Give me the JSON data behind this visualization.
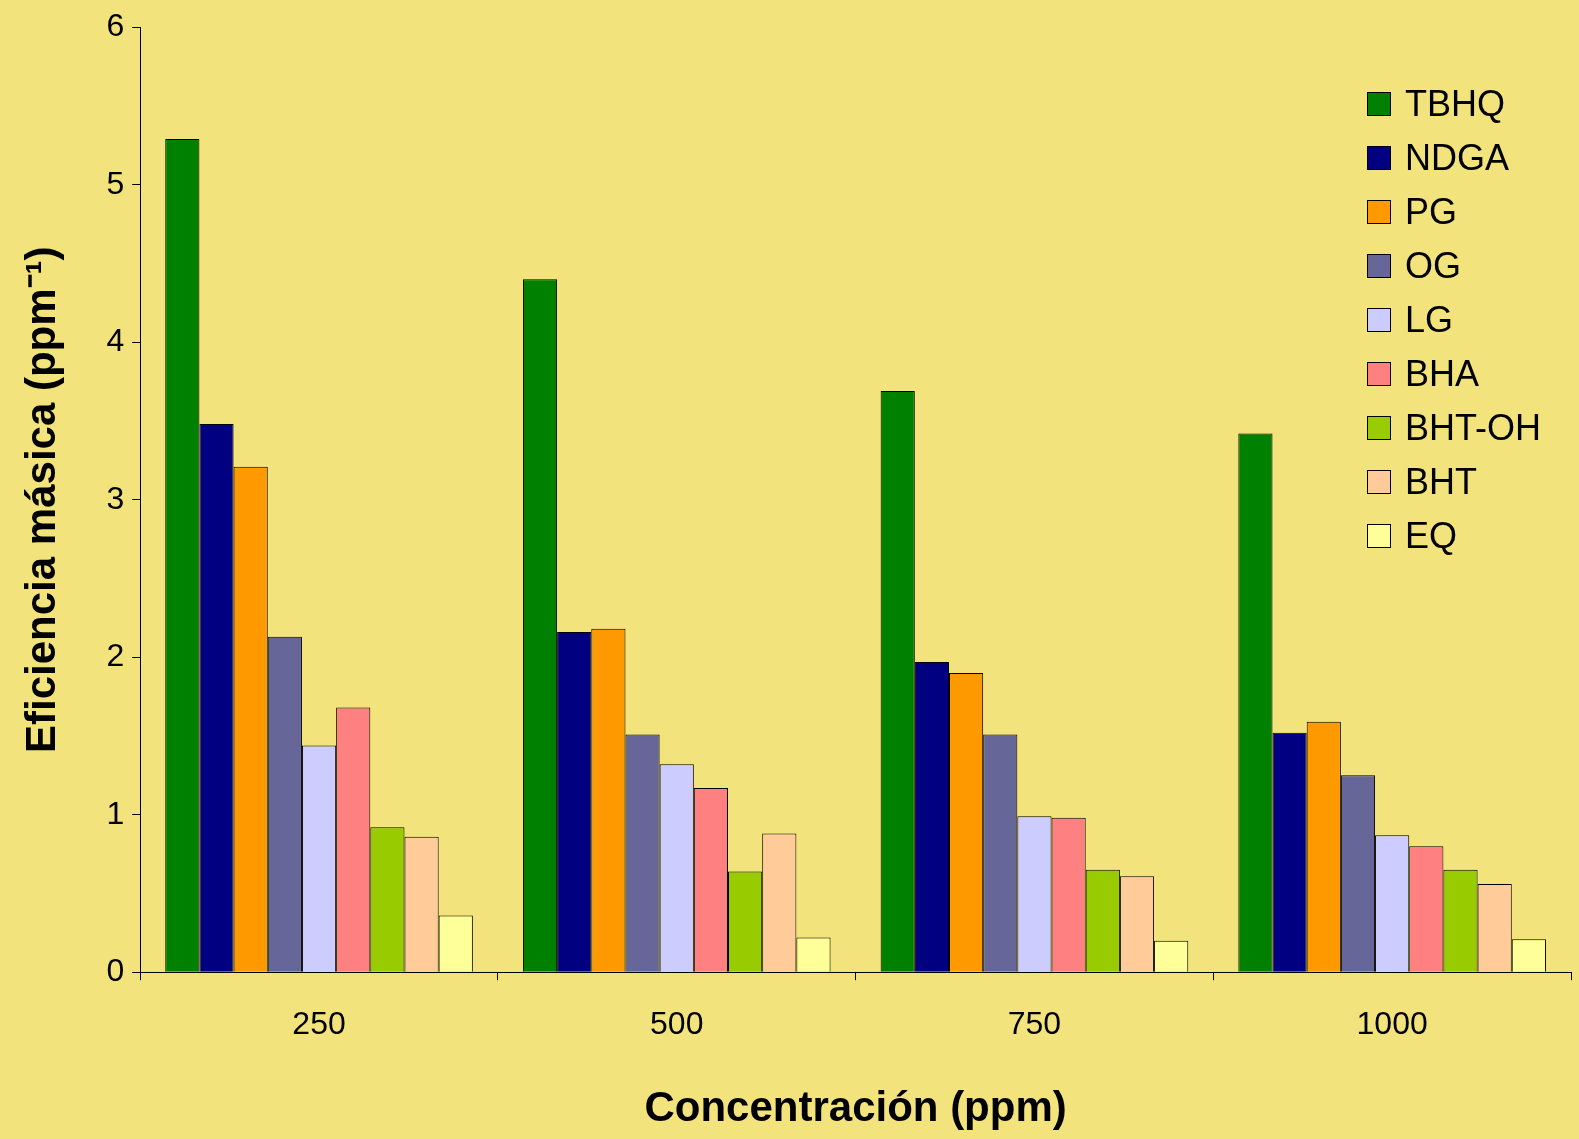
{
  "chart_data": {
    "type": "bar",
    "xlabel": "Concentración (ppm)",
    "ylabel": "Eficiencia másica (ppm⁻¹)",
    "categories": [
      "250",
      "500",
      "750",
      "1000"
    ],
    "series": [
      {
        "name": "TBHQ",
        "color": "#008000",
        "values": [
          5.29,
          4.4,
          3.69,
          3.42
        ]
      },
      {
        "name": "NDGA",
        "color": "#000080",
        "values": [
          3.48,
          2.16,
          1.97,
          1.52
        ]
      },
      {
        "name": "PG",
        "color": "#ff9900",
        "values": [
          3.21,
          2.18,
          1.9,
          1.59
        ]
      },
      {
        "name": "OG",
        "color": "#666699",
        "values": [
          2.13,
          1.51,
          1.51,
          1.25
        ]
      },
      {
        "name": "LG",
        "color": "#ccccff",
        "values": [
          1.44,
          1.32,
          0.99,
          0.87
        ]
      },
      {
        "name": "BHA",
        "color": "#ff8080",
        "values": [
          1.68,
          1.17,
          0.98,
          0.8
        ]
      },
      {
        "name": "BHT-OH",
        "color": "#99cc00",
        "values": [
          0.92,
          0.64,
          0.65,
          0.65
        ]
      },
      {
        "name": "BHT",
        "color": "#ffcc99",
        "values": [
          0.86,
          0.88,
          0.61,
          0.56
        ]
      },
      {
        "name": "EQ",
        "color": "#ffff99",
        "values": [
          0.36,
          0.22,
          0.2,
          0.21
        ]
      }
    ],
    "ylim": [
      0,
      6
    ],
    "yticks": [
      0,
      1,
      2,
      3,
      4,
      5,
      6
    ],
    "grid": false,
    "legend": "top right"
  }
}
